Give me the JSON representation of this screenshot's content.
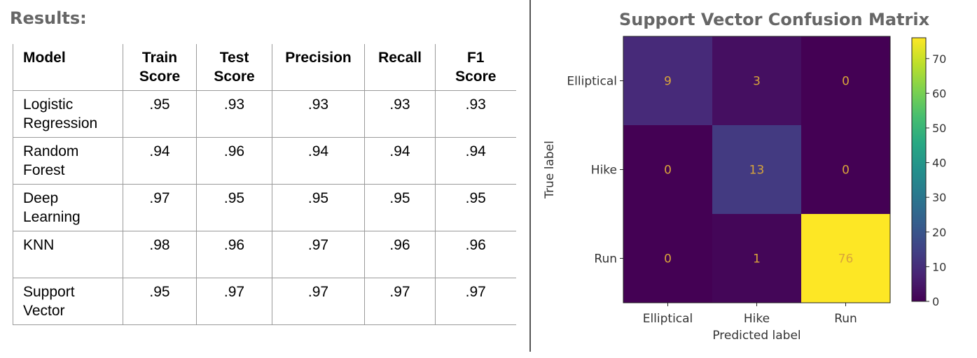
{
  "results": {
    "title": "Results:",
    "columns": [
      "Model",
      "Train Score",
      "Test Score",
      "Precision",
      "Recall",
      "F1 Score"
    ],
    "rows": [
      {
        "model": "Logistic Regression",
        "train": ".95",
        "test": ".93",
        "precision": ".93",
        "recall": ".93",
        "f1": ".93"
      },
      {
        "model": "Random Forest",
        "train": ".94",
        "test": ".96",
        "precision": ".94",
        "recall": ".94",
        "f1": ".94"
      },
      {
        "model": "Deep Learning",
        "train": ".97",
        "test": ".95",
        "precision": ".95",
        "recall": ".95",
        "f1": ".95"
      },
      {
        "model": "KNN",
        "train": ".98",
        "test": ".96",
        "precision": ".97",
        "recall": ".96",
        "f1": ".96"
      },
      {
        "model": "Support Vector",
        "train": ".95",
        "test": ".97",
        "precision": ".97",
        "recall": ".97",
        "f1": ".97"
      }
    ]
  },
  "chart_data": {
    "type": "heatmap",
    "title": "Support Vector Confusion Matrix",
    "xlabel": "Predicted label",
    "ylabel": "True label",
    "x_categories": [
      "Elliptical",
      "Hike",
      "Run"
    ],
    "y_categories": [
      "Elliptical",
      "Hike",
      "Run"
    ],
    "values": [
      [
        9,
        3,
        0
      ],
      [
        0,
        13,
        0
      ],
      [
        0,
        1,
        76
      ]
    ],
    "colormap": "viridis",
    "colorbar": {
      "min": 0,
      "max": 76,
      "ticks": [
        0,
        10,
        20,
        30,
        40,
        50,
        60,
        70
      ]
    },
    "grid": false
  }
}
